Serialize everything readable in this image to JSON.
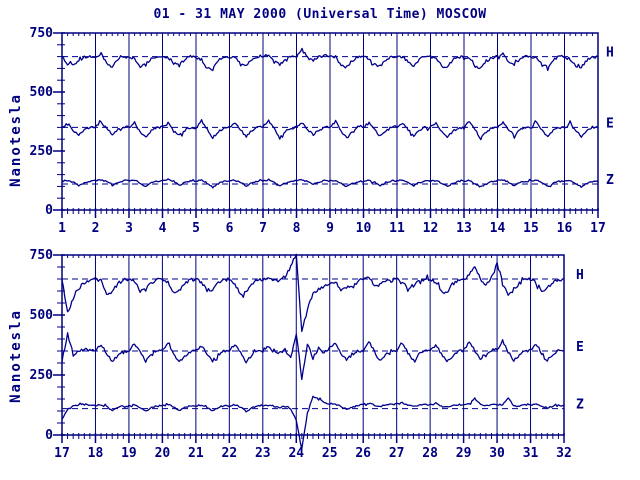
{
  "chart_data": {
    "type": "line",
    "title": "01 - 31 MAY 2000 (Universal Time) MOSCOW",
    "ylabel": "Nanotesla",
    "unit": "nT",
    "ylim": [
      0,
      750
    ],
    "y_ticks": [
      0,
      250,
      500,
      750
    ],
    "y_minor_step_nT": 50,
    "x_minor_ticks_per_day": 6,
    "grid": "vertical-solid-line-per-day",
    "legend_position": "right-of-each-panel",
    "colors": {
      "line": "#00008b",
      "axis": "#000080",
      "text": "#000080",
      "dashed_baseline": "#00008b",
      "background": "#ffffff"
    },
    "panels": [
      {
        "name": "days-1-17",
        "x_range": [
          1,
          17
        ],
        "x_tick_labels": [
          "1",
          "2",
          "3",
          "4",
          "5",
          "6",
          "7",
          "8",
          "9",
          "10",
          "11",
          "12",
          "13",
          "14",
          "15",
          "16",
          "17"
        ],
        "series": [
          {
            "name": "H",
            "label": "H",
            "baseline": 650,
            "samples_per_day": 6,
            "noise_nT": 6,
            "values": [
              648,
              618,
              612,
              632,
              648,
              652,
              650,
              662,
              620,
              605,
              640,
              650,
              648,
              640,
              608,
              618,
              642,
              650,
              652,
              648,
              622,
              610,
              640,
              650,
              648,
              638,
              600,
              596,
              635,
              648,
              650,
              645,
              618,
              608,
              638,
              650,
              652,
              655,
              628,
              615,
              640,
              648,
              650,
              680,
              645,
              632,
              650,
              655,
              652,
              648,
              615,
              605,
              635,
              648,
              650,
              642,
              612,
              608,
              638,
              650,
              652,
              648,
              625,
              612,
              640,
              650,
              650,
              645,
              610,
              602,
              636,
              648,
              650,
              640,
              605,
              598,
              632,
              646,
              650,
              665,
              625,
              612,
              640,
              652,
              650,
              645,
              618,
              608,
              638,
              650,
              648,
              640,
              610,
              605,
              635,
              648,
              650
            ]
          },
          {
            "name": "E",
            "label": "E",
            "baseline": 350,
            "samples_per_day": 6,
            "noise_nT": 5,
            "values": [
              345,
              368,
              335,
              315,
              338,
              352,
              352,
              375,
              345,
              318,
              340,
              352,
              350,
              372,
              332,
              310,
              336,
              350,
              352,
              368,
              340,
              315,
              338,
              350,
              348,
              378,
              342,
              305,
              332,
              348,
              350,
              372,
              338,
              312,
              336,
              350,
              352,
              380,
              345,
              308,
              334,
              348,
              350,
              368,
              340,
              318,
              340,
              352,
              350,
              375,
              335,
              305,
              332,
              348,
              350,
              370,
              338,
              312,
              336,
              350,
              352,
              372,
              340,
              315,
              338,
              350,
              350,
              368,
              335,
              308,
              334,
              348,
              350,
              378,
              340,
              302,
              332,
              348,
              352,
              370,
              342,
              315,
              338,
              350,
              350,
              372,
              338,
              310,
              336,
              350,
              348,
              365,
              335,
              312,
              337,
              350,
              350
            ]
          },
          {
            "name": "Z",
            "label": "Z",
            "baseline": 110,
            "samples_per_day": 6,
            "noise_nT": 3,
            "values": [
              122,
              125,
              118,
              102,
              115,
              122,
              124,
              128,
              120,
              105,
              118,
              124,
              124,
              126,
              115,
              98,
              114,
              122,
              124,
              130,
              122,
              104,
              116,
              123,
              122,
              126,
              114,
              96,
              112,
              120,
              122,
              126,
              118,
              102,
              115,
              122,
              124,
              128,
              116,
              100,
              114,
              122,
              124,
              127,
              120,
              108,
              118,
              124,
              122,
              125,
              114,
              98,
              112,
              120,
              122,
              126,
              118,
              102,
              116,
              122,
              124,
              128,
              118,
              104,
              116,
              123,
              122,
              125,
              115,
              100,
              114,
              121,
              122,
              126,
              112,
              95,
              110,
              120,
              124,
              128,
              118,
              103,
              116,
              122,
              122,
              126,
              116,
              100,
              114,
              121,
              122,
              125,
              114,
              100,
              113,
              120,
              122
            ]
          }
        ]
      },
      {
        "name": "days-17-32",
        "x_range": [
          17,
          32
        ],
        "x_tick_labels": [
          "17",
          "18",
          "19",
          "20",
          "21",
          "22",
          "23",
          "24",
          "25",
          "26",
          "27",
          "28",
          "29",
          "30",
          "31",
          "32"
        ],
        "series": [
          {
            "name": "H",
            "label": "H",
            "baseline": 650,
            "samples_per_day": 6,
            "noise_nT": 7,
            "values": [
              648,
              510,
              570,
              610,
              635,
              648,
              652,
              640,
              582,
              598,
              630,
              648,
              650,
              642,
              595,
              605,
              635,
              648,
              650,
              638,
              590,
              600,
              632,
              645,
              648,
              635,
              602,
              608,
              635,
              648,
              648,
              630,
              585,
              598,
              630,
              645,
              648,
              652,
              640,
              645,
              660,
              700,
              755,
              430,
              520,
              590,
              610,
              620,
              630,
              640,
              605,
              618,
              612,
              640,
              648,
              660,
              622,
              628,
              640,
              648,
              650,
              642,
              615,
              622,
              640,
              650,
              648,
              635,
              598,
              592,
              628,
              645,
              650,
              665,
              705,
              645,
              628,
              655,
              712,
              640,
              578,
              605,
              632,
              645,
              648,
              635,
              602,
              614,
              638,
              648,
              650
            ]
          },
          {
            "name": "E",
            "label": "E",
            "baseline": 350,
            "samples_per_day": 6,
            "noise_nT": 6,
            "values": [
              310,
              420,
              332,
              352,
              360,
              352,
              352,
              378,
              340,
              308,
              334,
              350,
              350,
              382,
              345,
              306,
              332,
              348,
              352,
              378,
              340,
              305,
              330,
              348,
              350,
              372,
              338,
              310,
              334,
              350,
              350,
              380,
              342,
              305,
              330,
              348,
              350,
              368,
              346,
              340,
              356,
              320,
              425,
              232,
              382,
              320,
              362,
              342,
              366,
              386,
              340,
              310,
              336,
              350,
              352,
              392,
              346,
              308,
              334,
              350,
              352,
              386,
              342,
              310,
              336,
              350,
              350,
              378,
              340,
              305,
              330,
              348,
              352,
              388,
              350,
              315,
              340,
              352,
              356,
              396,
              345,
              310,
              335,
              350,
              352,
              380,
              340,
              312,
              338,
              350,
              350
            ]
          },
          {
            "name": "Z",
            "label": "Z",
            "baseline": 110,
            "samples_per_day": 6,
            "noise_nT": 3,
            "values": [
              65,
              105,
              120,
              125,
              128,
              125,
              122,
              126,
              118,
              102,
              114,
              121,
              122,
              127,
              116,
              100,
              114,
              121,
              122,
              126,
              118,
              102,
              115,
              122,
              122,
              125,
              115,
              100,
              114,
              121,
              122,
              126,
              116,
              98,
              113,
              120,
              122,
              125,
              120,
              115,
              118,
              108,
              60,
              -60,
              90,
              160,
              150,
              135,
              130,
              128,
              118,
              108,
              116,
              122,
              128,
              132,
              124,
              118,
              124,
              128,
              128,
              134,
              126,
              118,
              124,
              128,
              126,
              130,
              122,
              115,
              122,
              126,
              126,
              130,
              155,
              128,
              124,
              126,
              128,
              126,
              155,
              120,
              122,
              126,
              124,
              128,
              120,
              114,
              120,
              124,
              122
            ]
          }
        ]
      }
    ]
  }
}
